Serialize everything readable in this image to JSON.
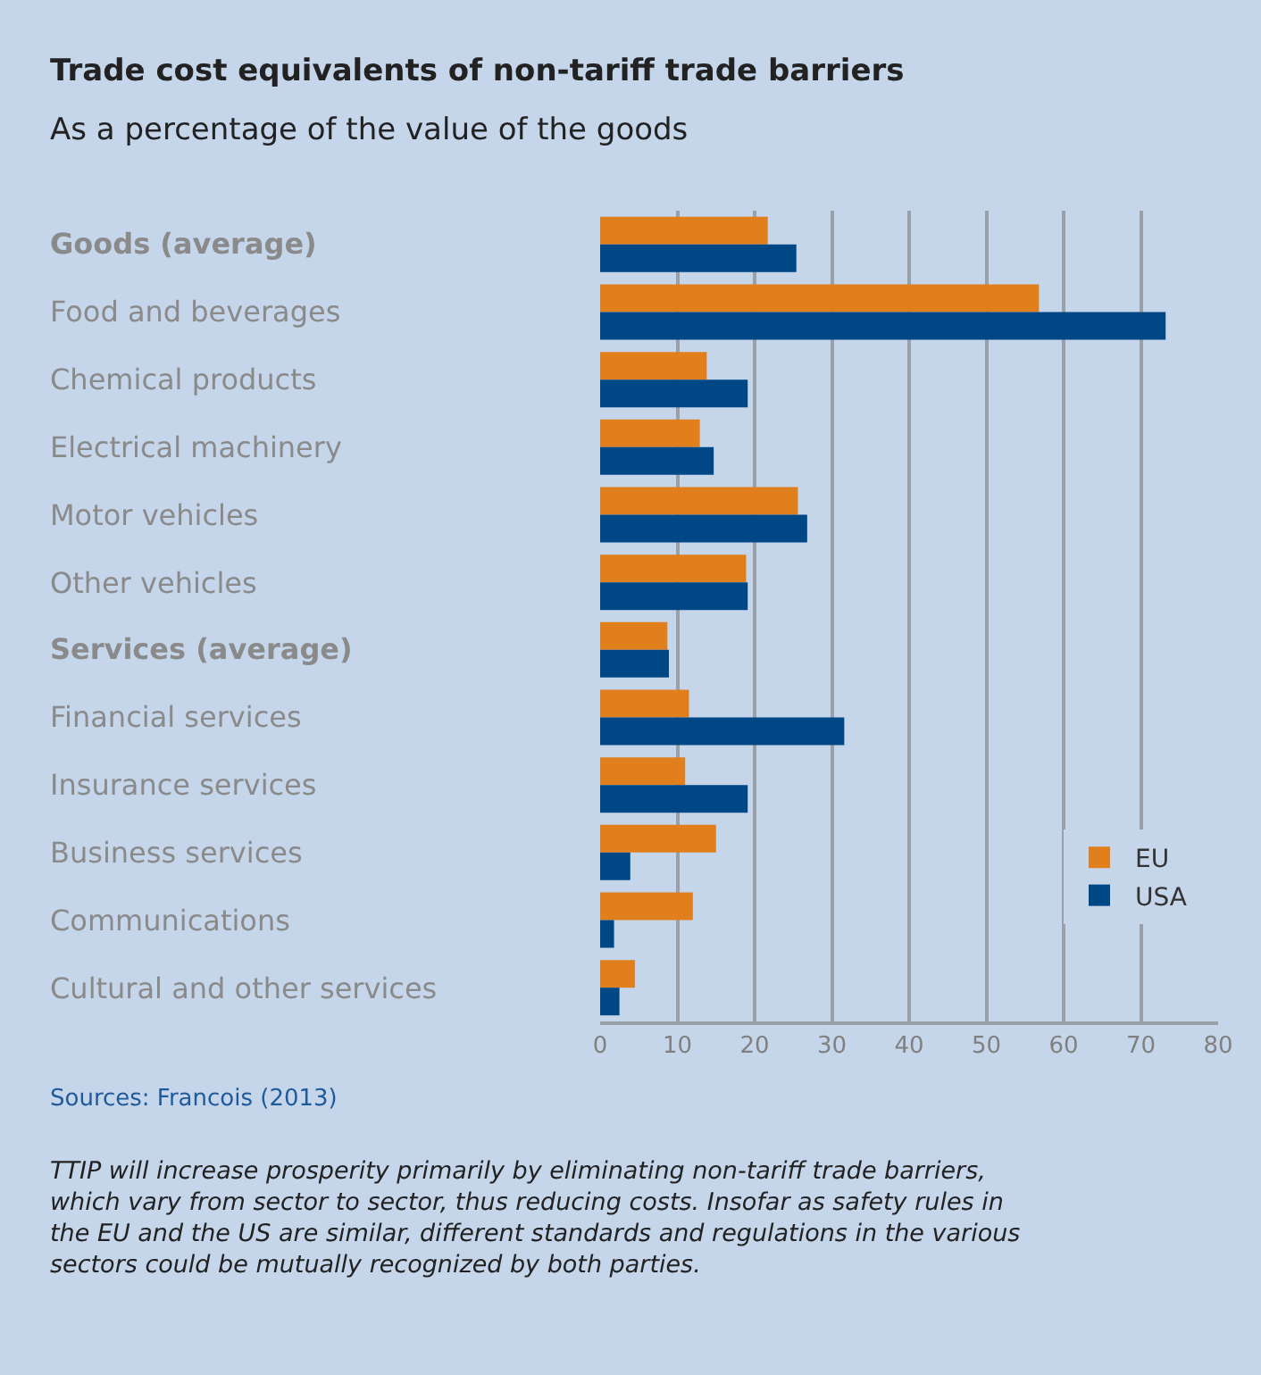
{
  "chart_data": {
    "type": "bar",
    "orientation": "horizontal",
    "title": "Trade cost equivalents of non-tariff trade barriers",
    "subtitle": "As a percentage of the value of the goods",
    "categories": [
      "Goods (average)",
      "Food and beverages",
      "Chemical products",
      "Electrical machinery",
      "Motor vehicles",
      "Other vehicles",
      "Services (average)",
      "Financial services",
      "Insurance services",
      "Business services",
      "Communications",
      "Cultural and other services"
    ],
    "series": [
      {
        "name": "EU",
        "color": "#e07f1c",
        "values": [
          21.7,
          56.8,
          13.8,
          12.9,
          25.6,
          18.9,
          8.7,
          11.5,
          11.0,
          15.0,
          12.0,
          4.5
        ]
      },
      {
        "name": "USA",
        "color": "#004786",
        "values": [
          25.4,
          73.2,
          19.1,
          14.7,
          26.8,
          19.1,
          8.9,
          31.6,
          19.1,
          3.9,
          1.8,
          2.5
        ]
      }
    ],
    "xlim": [
      0,
      80
    ],
    "xticks": [
      0,
      10,
      20,
      30,
      40,
      50,
      60,
      70,
      80
    ],
    "grid": "x",
    "legend": "bottom right",
    "annotations": [
      "Sources: Francois (2013)",
      "TTIP will increase prosperity primarily by eliminating non-tariff trade barriers, which vary from sector to sector, thus reducing costs. Insofar as safety rules in the EU and the US are similar, different standards and regulations in the various sectors could be mutually recognized by both parties."
    ]
  }
}
